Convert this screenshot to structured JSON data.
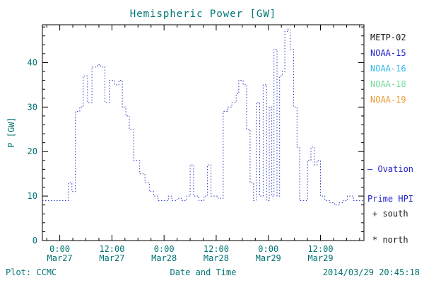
{
  "colors": {
    "plot_text": "#007373",
    "axis": "#000000",
    "line": "#2233bb",
    "background": "#ffffff"
  },
  "chart": {
    "title": "Hemispheric Power [GW]",
    "ylabel": "P [GW]",
    "xlabel": "Date and Time"
  },
  "legend": {
    "items": [
      {
        "label": "METP-02",
        "color": "#1a1a1a"
      },
      {
        "label": "NOAA-15",
        "color": "#2222cc"
      },
      {
        "label": "NOAA-16",
        "color": "#33bbee"
      },
      {
        "label": "NOAA-18",
        "color": "#77dd99"
      },
      {
        "label": "NOAA-19",
        "color": "#ee9933"
      }
    ],
    "ovation_line1": "— Ovation",
    "ovation_line2": "Prime HPI",
    "ovation_color": "#2222cc",
    "south_marker": "+ south",
    "north_marker": "* north",
    "marker_color": "#1a1a1a"
  },
  "footer": {
    "plot_credit": "Plot: CCMC",
    "timestamp": "2014/03/29 20:45:18"
  },
  "chart_data": {
    "type": "line",
    "style": "dotted-step",
    "title": "Hemispheric Power [GW]",
    "series_name": "Ovation Prime HPI",
    "xlabel": "Date and Time",
    "ylabel": "P [GW]",
    "x_unit": "hours since 2014-03-27 00:00",
    "xlim": [
      -4,
      70
    ],
    "ylim": [
      0,
      48.5
    ],
    "yticks": [
      0,
      10,
      20,
      30,
      40
    ],
    "y_minor_step": 2,
    "x_minor_step": 3,
    "grid": false,
    "legend_position": "right",
    "xticks": [
      {
        "t": 0,
        "time": "0:00",
        "date": "Mar27"
      },
      {
        "t": 12,
        "time": "12:00",
        "date": "Mar27"
      },
      {
        "t": 24,
        "time": "0:00",
        "date": "Mar28"
      },
      {
        "t": 36,
        "time": "12:00",
        "date": "Mar28"
      },
      {
        "t": 48,
        "time": "0:00",
        "date": "Mar29"
      },
      {
        "t": 60,
        "time": "12:00",
        "date": "Mar29"
      }
    ],
    "points": [
      [
        -4.0,
        9
      ],
      [
        2.0,
        13
      ],
      [
        2.8,
        11
      ],
      [
        3.6,
        29
      ],
      [
        4.6,
        30
      ],
      [
        5.4,
        37
      ],
      [
        6.4,
        31
      ],
      [
        7.4,
        39
      ],
      [
        8.6,
        39.5
      ],
      [
        9.4,
        39
      ],
      [
        10.4,
        31
      ],
      [
        11.4,
        36
      ],
      [
        12.6,
        35
      ],
      [
        13.6,
        36
      ],
      [
        14.4,
        30
      ],
      [
        15.2,
        28
      ],
      [
        16.0,
        25
      ],
      [
        17.0,
        18
      ],
      [
        18.4,
        15
      ],
      [
        19.6,
        13
      ],
      [
        20.6,
        11
      ],
      [
        21.6,
        10
      ],
      [
        22.6,
        9
      ],
      [
        25.0,
        10
      ],
      [
        25.8,
        9
      ],
      [
        27.0,
        9.5
      ],
      [
        28.0,
        9
      ],
      [
        29.2,
        10
      ],
      [
        30.0,
        17
      ],
      [
        30.8,
        10
      ],
      [
        32.0,
        9
      ],
      [
        33.2,
        10
      ],
      [
        34.0,
        17
      ],
      [
        34.8,
        10
      ],
      [
        36.4,
        9.5
      ],
      [
        37.6,
        29
      ],
      [
        38.6,
        30
      ],
      [
        39.6,
        31
      ],
      [
        40.6,
        33
      ],
      [
        41.2,
        36
      ],
      [
        42.2,
        35
      ],
      [
        43.0,
        25
      ],
      [
        43.8,
        13
      ],
      [
        44.6,
        9
      ],
      [
        45.2,
        31
      ],
      [
        46.0,
        10
      ],
      [
        46.8,
        35
      ],
      [
        47.6,
        9
      ],
      [
        48.2,
        30
      ],
      [
        48.8,
        10
      ],
      [
        49.3,
        43
      ],
      [
        50.0,
        10
      ],
      [
        50.6,
        37
      ],
      [
        51.2,
        38
      ],
      [
        51.8,
        47
      ],
      [
        52.4,
        47.5
      ],
      [
        53.0,
        43
      ],
      [
        53.8,
        30
      ],
      [
        54.6,
        21
      ],
      [
        55.2,
        9
      ],
      [
        57.0,
        18
      ],
      [
        57.8,
        21
      ],
      [
        58.6,
        17
      ],
      [
        59.2,
        18
      ],
      [
        60.0,
        10
      ],
      [
        61.0,
        9
      ],
      [
        62.2,
        8.5
      ],
      [
        63.2,
        8
      ],
      [
        64.4,
        8.5
      ],
      [
        65.2,
        9
      ],
      [
        66.2,
        10
      ],
      [
        67.6,
        9
      ]
    ]
  }
}
